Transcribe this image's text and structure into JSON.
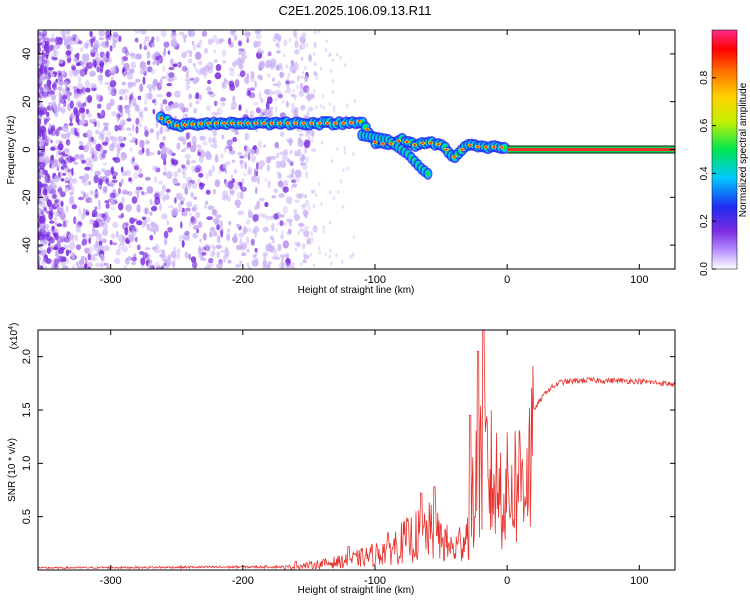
{
  "title": "C2E1.2025.106.09.13.R11",
  "colors": {
    "snr_line": "#e8322e",
    "signal_core": "#e8322e",
    "noise": "#7a2be0",
    "frame": "#000000"
  },
  "chart_data": [
    {
      "type": "heatmap",
      "xlabel": "Height of straight line (km)",
      "ylabel": "Frequency (Hz)",
      "xlim": [
        -355,
        127
      ],
      "ylim": [
        -50,
        50
      ],
      "x_ticks": [
        -300,
        -200,
        -100,
        0,
        100
      ],
      "y_ticks": [
        -40,
        -20,
        0,
        20,
        40
      ],
      "colorbar": {
        "label": "Normalized spectral amplitude",
        "range": [
          0,
          1
        ],
        "ticks": [
          "0.0",
          "0.2",
          "0.4",
          "0.6",
          "0.8"
        ],
        "colormap": [
          "#ffffff",
          "#b58cff",
          "#7a2be0",
          "#1e2cf0",
          "#00c8ff",
          "#00e650",
          "#c8f000",
          "#ffd200",
          "#ff7800",
          "#ff0000",
          "#ff2a8c"
        ]
      },
      "ridge": {
        "x": [
          -262,
          -250,
          -230,
          -200,
          -180,
          -160,
          -140,
          -120,
          -110,
          -100,
          -90,
          -80,
          -70,
          -60,
          -50,
          -40,
          -30,
          -20,
          -10,
          0,
          127
        ],
        "y": [
          13,
          10,
          11,
          11,
          11,
          11,
          11,
          11,
          12,
          3,
          2,
          4,
          2,
          3,
          2,
          -3,
          2,
          1,
          1,
          1,
          0
        ],
        "tail": {
          "x": [
            -110,
            -90,
            -75,
            -65,
            -58
          ],
          "y": [
            6,
            4,
            -2,
            -8,
            -11
          ]
        }
      }
    },
    {
      "type": "line",
      "xlabel": "Height of straight line (km)",
      "ylabel": "SNR (10 * v/v)",
      "y_multiplier": "(x10",
      "y_multiplier_exp": "4",
      "y_multiplier_close": ")",
      "xlim": [
        -355,
        127
      ],
      "ylim": [
        0,
        2.25
      ],
      "x_ticks": [
        -300,
        -200,
        -100,
        0,
        100
      ],
      "y_ticks": [
        0.5,
        1.0,
        1.5,
        2.0
      ],
      "series": [
        {
          "envelope_x": [
            -355,
            -170,
            -150,
            -120,
            -100,
            -80,
            -60,
            -50,
            -40,
            -30,
            -25,
            -20,
            -15,
            -10,
            0,
            10,
            20,
            30,
            40,
            60,
            100,
            127
          ],
          "envelope_y": [
            0.02,
            0.03,
            0.06,
            0.12,
            0.2,
            0.35,
            0.5,
            0.4,
            0.25,
            0.5,
            0.9,
            1.6,
            1.3,
            1.1,
            1.0,
            1.2,
            1.5,
            1.68,
            1.76,
            1.78,
            1.77,
            1.74
          ],
          "spikes": [
            {
              "x": -160,
              "y": 0.08
            },
            {
              "x": -120,
              "y": 0.22
            },
            {
              "x": -65,
              "y": 0.72
            },
            {
              "x": -55,
              "y": 0.78
            },
            {
              "x": -28,
              "y": 1.45
            },
            {
              "x": -22,
              "y": 2.05
            },
            {
              "x": -18,
              "y": 2.25
            }
          ]
        }
      ]
    }
  ]
}
